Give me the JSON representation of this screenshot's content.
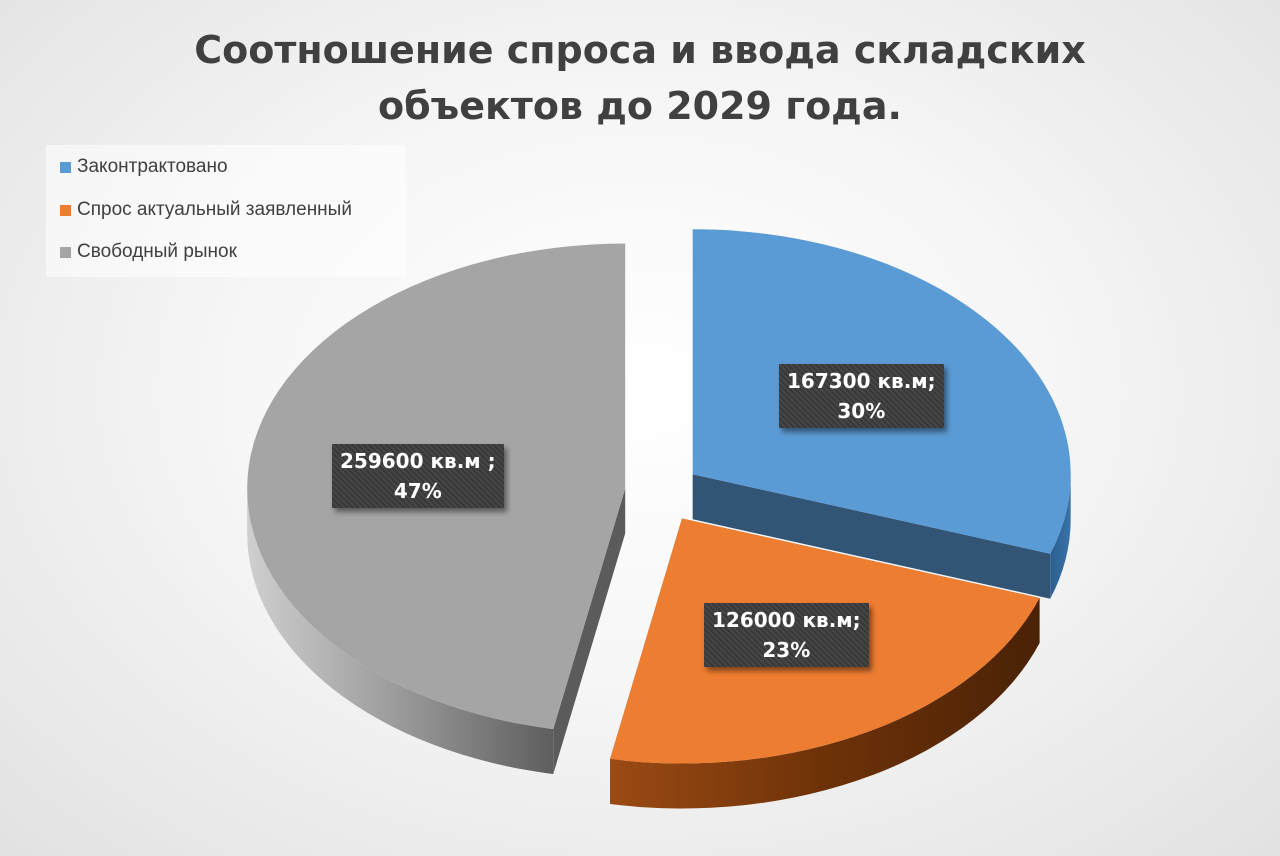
{
  "chart_data": {
    "type": "pie",
    "title_lines": [
      "Соотношение спроса и ввода складских",
      "объектов до 2029 года."
    ],
    "legend_position": "top-left",
    "categories": [
      "Законтрактовано",
      "Спрос актуальный заявленный",
      "Свободный рынок"
    ],
    "values": [
      167300,
      126000,
      259600
    ],
    "percent_labels": [
      "30%",
      "23%",
      "47%"
    ],
    "value_labels": [
      "167300 кв.м;",
      "126000 кв.м;",
      "259600 кв.м ;"
    ],
    "unit": "кв.м",
    "colors": [
      "#5b9bd5",
      "#ed7d31",
      "#a5a5a5"
    ]
  }
}
